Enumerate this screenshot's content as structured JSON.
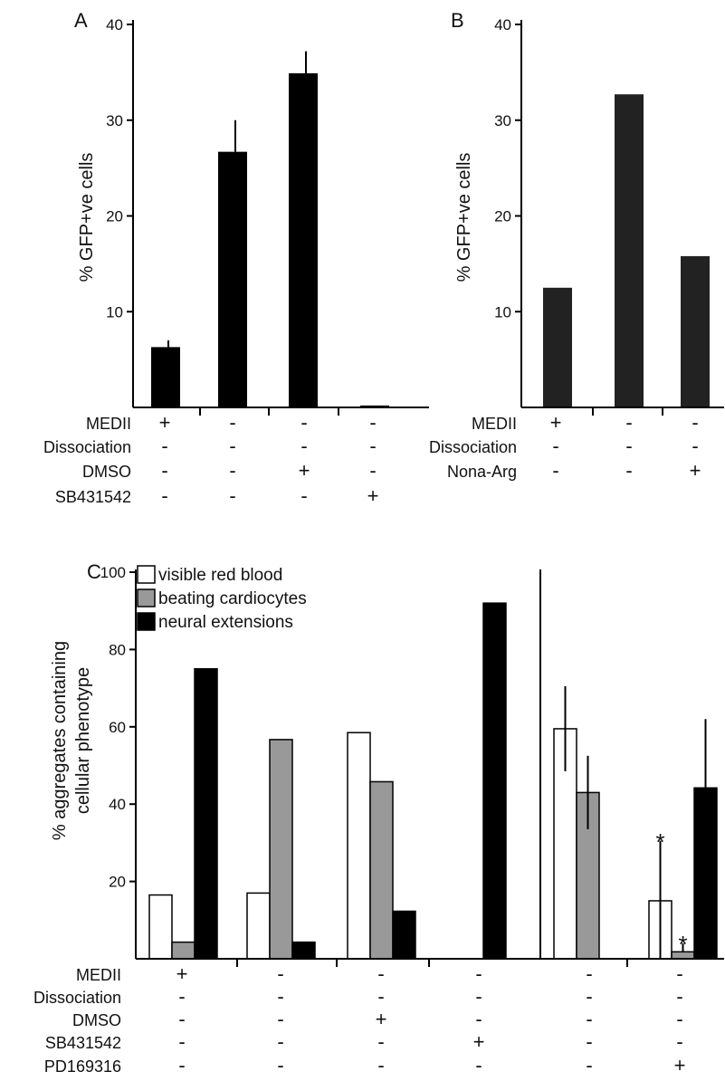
{
  "panels": {
    "A": {
      "label": "A",
      "ylabel": "% GFP+ve cells",
      "conditions": [
        {
          "name": "MEDII",
          "signs": [
            "+",
            "-",
            "-",
            "-"
          ]
        },
        {
          "name": "Dissociation",
          "signs": [
            "-",
            "-",
            "-",
            "-"
          ]
        },
        {
          "name": "DMSO",
          "signs": [
            "-",
            "-",
            "+",
            "-"
          ]
        },
        {
          "name": "SB431542",
          "signs": [
            "-",
            "-",
            "-",
            "+"
          ]
        }
      ]
    },
    "B": {
      "label": "B",
      "ylabel": "% GFP+ve cells",
      "conditions": [
        {
          "name": "MEDII",
          "signs": [
            "+",
            "-",
            "-"
          ]
        },
        {
          "name": "Dissociation",
          "signs": [
            "-",
            "-",
            "-"
          ]
        },
        {
          "name": "Nona-Arg",
          "signs": [
            "-",
            "-",
            "+"
          ]
        }
      ]
    },
    "C": {
      "label": "C",
      "ylabel_line1": "% aggregates containing",
      "ylabel_line2": "cellular phenotype",
      "conditions": [
        {
          "name": "MEDII",
          "signs": [
            "+",
            "-",
            "-",
            "-",
            "-",
            "-"
          ]
        },
        {
          "name": "Dissociation",
          "signs": [
            "-",
            "-",
            "-",
            "-",
            "-",
            "-"
          ]
        },
        {
          "name": "DMSO",
          "signs": [
            "-",
            "-",
            "+",
            "-",
            "-",
            "-"
          ]
        },
        {
          "name": "SB431542",
          "signs": [
            "-",
            "-",
            "-",
            "+",
            "-",
            "-"
          ]
        },
        {
          "name": "PD169316",
          "signs": [
            "-",
            "-",
            "-",
            "-",
            "-",
            "+"
          ]
        }
      ]
    }
  },
  "chart_data": [
    {
      "panel": "A",
      "type": "bar",
      "ylabel": "% GFP+ve cells",
      "ylim": [
        0,
        40
      ],
      "yticks": [
        10,
        20,
        30,
        40
      ],
      "values": [
        6.3,
        26.7,
        34.9,
        0.2
      ],
      "error_upper": [
        7.0,
        30.0,
        37.2,
        null
      ],
      "color": "#000000"
    },
    {
      "panel": "B",
      "type": "bar",
      "ylabel": "% GFP+ve cells",
      "ylim": [
        0,
        40
      ],
      "yticks": [
        10,
        20,
        30,
        40
      ],
      "values": [
        12.5,
        32.7,
        15.8
      ],
      "color": "#222222"
    },
    {
      "panel": "C",
      "type": "bar",
      "ylabel": "% aggregates containing cellular phenotype",
      "ylim": [
        0,
        100
      ],
      "yticks": [
        20,
        40,
        60,
        80,
        100
      ],
      "legend_position": "top-left",
      "series": [
        {
          "name": "visible red blood",
          "color": "#ffffff",
          "values": [
            16.5,
            17.0,
            58.5,
            0,
            59.5,
            15.0
          ],
          "error_low": [
            null,
            null,
            null,
            null,
            48.5,
            0
          ],
          "error_high": [
            null,
            null,
            null,
            null,
            70.5,
            30.5
          ]
        },
        {
          "name": "beating cardiocytes",
          "color": "#999999",
          "values": [
            4.3,
            56.7,
            45.8,
            0,
            43.0,
            1.8
          ],
          "error_low": [
            null,
            null,
            null,
            null,
            33.5,
            null
          ],
          "error_high": [
            null,
            null,
            null,
            null,
            52.5,
            4.0
          ]
        },
        {
          "name": "neural extensions",
          "color": "#000000",
          "values": [
            75.0,
            4.3,
            12.3,
            92.0,
            0,
            44.2
          ],
          "error_low": [
            null,
            null,
            null,
            null,
            null,
            26.5
          ],
          "error_high": [
            null,
            null,
            null,
            null,
            null,
            62.0
          ]
        }
      ],
      "annotations": [
        {
          "text": "*",
          "group": 5,
          "series": 0
        },
        {
          "text": "*",
          "group": 5,
          "series": 1
        }
      ]
    }
  ]
}
